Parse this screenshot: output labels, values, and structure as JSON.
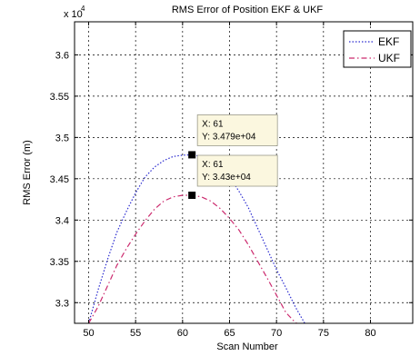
{
  "chart_data": {
    "type": "line",
    "title": "RMS Error of Position EKF & UKF",
    "xlabel": "Scan Number",
    "ylabel": "RMS Error (m)",
    "exponent_label": "x 10",
    "exponent_power": "4",
    "xlim": [
      48.5,
      84.5
    ],
    "ylim": [
      32750,
      36400
    ],
    "x_ticks": [
      50,
      55,
      60,
      65,
      70,
      75,
      80
    ],
    "x_tick_labels": [
      "50",
      "55",
      "60",
      "65",
      "70",
      "75",
      "80"
    ],
    "y_ticks": [
      33000,
      33500,
      34000,
      34500,
      35000,
      35500,
      36000
    ],
    "y_tick_labels": [
      "3.3",
      "3.35",
      "3.4",
      "3.45",
      "3.5",
      "3.55",
      "3.6"
    ],
    "grid": true,
    "legend_position": "top-right",
    "series": [
      {
        "name": "EKF",
        "color": "#2b2bd0",
        "style": "dotted",
        "x": [
          50,
          51,
          52,
          53,
          54,
          55,
          56,
          57,
          58,
          59,
          60,
          61,
          62,
          63,
          64,
          65,
          66,
          67,
          68,
          69,
          70,
          71,
          72,
          73
        ],
        "y": [
          32750,
          33150,
          33520,
          33850,
          34100,
          34330,
          34520,
          34640,
          34720,
          34770,
          34785,
          34790,
          34770,
          34720,
          34640,
          34520,
          34350,
          34150,
          33900,
          33650,
          33400,
          33180,
          32950,
          32750
        ]
      },
      {
        "name": "UKF",
        "color": "#cc2a6e",
        "style": "dashdot",
        "x": [
          50,
          51,
          52,
          53,
          54,
          55,
          56,
          57,
          58,
          59,
          60,
          61,
          62,
          63,
          64,
          65,
          66,
          67,
          68,
          69,
          70,
          71,
          72,
          73
        ],
        "y": [
          32750,
          32950,
          33200,
          33450,
          33650,
          33830,
          33990,
          34130,
          34230,
          34280,
          34300,
          34300,
          34280,
          34230,
          34140,
          34020,
          33880,
          33700,
          33500,
          33300,
          33090,
          32880,
          32760,
          32700
        ]
      }
    ],
    "datatips": [
      {
        "x": 61,
        "y": 34790,
        "x_label": "X: 61",
        "y_label": "Y: 3.479e+04"
      },
      {
        "x": 61,
        "y": 34300,
        "x_label": "X: 61",
        "y_label": "Y: 3.43e+04"
      }
    ]
  }
}
